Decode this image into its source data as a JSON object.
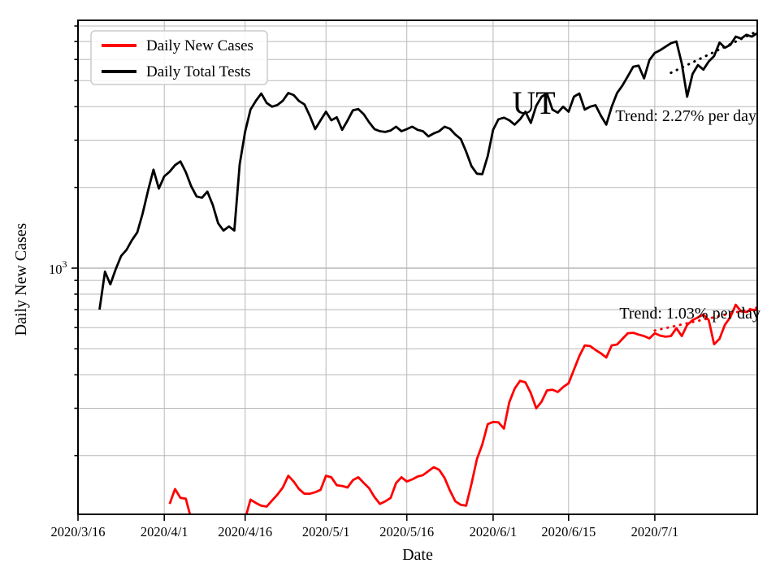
{
  "chart_data": {
    "type": "line",
    "state_label": "UT",
    "x_axis": {
      "label": "Date",
      "domain_days": [
        0,
        126
      ],
      "ticks": [
        {
          "day": 0,
          "label": "2020/3/16"
        },
        {
          "day": 16,
          "label": "2020/4/1"
        },
        {
          "day": 31,
          "label": "2020/4/16"
        },
        {
          "day": 46,
          "label": "2020/5/1"
        },
        {
          "day": 61,
          "label": "2020/5/16"
        },
        {
          "day": 77,
          "label": "2020/6/1"
        },
        {
          "day": 91,
          "label": "2020/6/15"
        },
        {
          "day": 107,
          "label": "2020/7/1"
        }
      ]
    },
    "y_axis": {
      "label": "Daily New Cases",
      "scale": "log",
      "ylim": [
        121,
        8410
      ],
      "major_tick": {
        "base": "10",
        "exponent": "3",
        "value": 1000
      },
      "gridline_values": [
        200,
        300,
        400,
        500,
        600,
        700,
        800,
        900,
        1000,
        2000,
        3000,
        4000,
        5000,
        6000,
        7000,
        8000
      ]
    },
    "grid": {
      "show": true,
      "color": "#b8b8b8"
    },
    "legend": {
      "position": "upper left",
      "items": [
        {
          "label": "Daily New Cases",
          "color": "#ff0000"
        },
        {
          "label": "Daily Total Tests",
          "color": "#000000"
        }
      ]
    },
    "series": [
      {
        "name": "Daily Total Tests",
        "color": "#000000",
        "start_day": 4,
        "values": [
          700,
          970,
          870,
          990,
          1110,
          1170,
          1270,
          1360,
          1600,
          1950,
          2330,
          1980,
          2200,
          2290,
          2420,
          2500,
          2280,
          2020,
          1850,
          1830,
          1930,
          1720,
          1470,
          1380,
          1430,
          1380,
          2440,
          3230,
          3900,
          4210,
          4480,
          4130,
          4000,
          4060,
          4210,
          4500,
          4420,
          4200,
          4080,
          3700,
          3300,
          3560,
          3830,
          3560,
          3650,
          3280,
          3550,
          3880,
          3920,
          3750,
          3500,
          3300,
          3240,
          3220,
          3260,
          3370,
          3240,
          3300,
          3370,
          3280,
          3240,
          3100,
          3180,
          3240,
          3370,
          3310,
          3150,
          3030,
          2720,
          2400,
          2250,
          2240,
          2620,
          3280,
          3590,
          3640,
          3560,
          3430,
          3590,
          3830,
          3480,
          4030,
          4360,
          4480,
          3900,
          3800,
          4000,
          3830,
          4360,
          4480,
          3900,
          4000,
          4050,
          3700,
          3430,
          4000,
          4500,
          4800,
          5200,
          5640,
          5690,
          5100,
          5970,
          6350,
          6500,
          6700,
          6900,
          7000,
          5800,
          4360,
          5300,
          5720,
          5500,
          5900,
          6180,
          6940,
          6640,
          6800,
          7300,
          7180,
          7420,
          7300,
          7520
        ]
      },
      {
        "name": "Daily New Cases",
        "color": "#ff0000",
        "start_day": 17,
        "values": [
          132,
          150,
          139,
          138,
          116,
          null,
          null,
          null,
          null,
          null,
          null,
          null,
          null,
          null,
          116,
          137,
          133,
          130,
          129,
          136,
          143,
          152,
          168,
          160,
          150,
          144,
          144,
          146,
          149,
          168,
          166,
          155,
          154,
          152,
          162,
          166,
          158,
          151,
          140,
          132,
          135,
          139,
          158,
          166,
          160,
          163,
          167,
          169,
          175,
          181,
          177,
          165,
          148,
          135,
          131,
          130,
          157,
          194,
          220,
          262,
          267,
          266,
          252,
          316,
          355,
          380,
          375,
          342,
          300,
          318,
          350,
          352,
          345,
          360,
          372,
          418,
          470,
          515,
          512,
          495,
          481,
          464,
          515,
          519,
          545,
          572,
          574,
          565,
          558,
          547,
          572,
          560,
          555,
          558,
          597,
          558,
          614,
          640,
          655,
          672,
          640,
          520,
          545,
          615,
          655,
          730,
          690,
          686,
          700,
          698
        ]
      }
    ],
    "trend_lines": [
      {
        "series": "Daily Total Tests",
        "label": "Trend: 2.27% per day",
        "color": "#000000",
        "start_day": 110,
        "start_value": 5350,
        "end_day": 126,
        "end_value": 7650
      },
      {
        "series": "Daily New Cases",
        "label": "Trend: 1.03% per day",
        "color": "#ff0000",
        "start_day": 107,
        "start_value": 585,
        "end_day": 126,
        "end_value": 713
      }
    ]
  }
}
